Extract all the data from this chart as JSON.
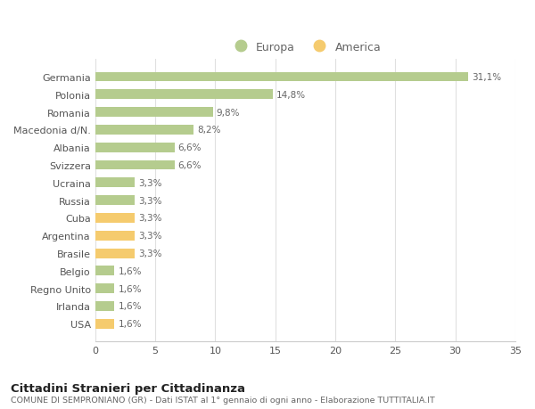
{
  "categories": [
    "Germania",
    "Polonia",
    "Romania",
    "Macedonia d/N.",
    "Albania",
    "Svizzera",
    "Ucraina",
    "Russia",
    "Cuba",
    "Argentina",
    "Brasile",
    "Belgio",
    "Regno Unito",
    "Irlanda",
    "USA"
  ],
  "values": [
    31.1,
    14.8,
    9.8,
    8.2,
    6.6,
    6.6,
    3.3,
    3.3,
    3.3,
    3.3,
    3.3,
    1.6,
    1.6,
    1.6,
    1.6
  ],
  "labels": [
    "31,1%",
    "14,8%",
    "9,8%",
    "8,2%",
    "6,6%",
    "6,6%",
    "3,3%",
    "3,3%",
    "3,3%",
    "3,3%",
    "3,3%",
    "1,6%",
    "1,6%",
    "1,6%",
    "1,6%"
  ],
  "colors": [
    "#b5cc8e",
    "#b5cc8e",
    "#b5cc8e",
    "#b5cc8e",
    "#b5cc8e",
    "#b5cc8e",
    "#b5cc8e",
    "#b5cc8e",
    "#f5cb6e",
    "#f5cb6e",
    "#f5cb6e",
    "#b5cc8e",
    "#b5cc8e",
    "#b5cc8e",
    "#f5cb6e"
  ],
  "europa_color": "#b5cc8e",
  "america_color": "#f5cb6e",
  "background_color": "#ffffff",
  "grid_color": "#e0e0e0",
  "xlim": [
    0,
    35
  ],
  "xticks": [
    0,
    5,
    10,
    15,
    20,
    25,
    30,
    35
  ],
  "title": "Cittadini Stranieri per Cittadinanza",
  "subtitle": "COMUNE DI SEMPRONIANO (GR) - Dati ISTAT al 1° gennaio di ogni anno - Elaborazione TUTTITALIA.IT",
  "legend_europa": "Europa",
  "legend_america": "America"
}
